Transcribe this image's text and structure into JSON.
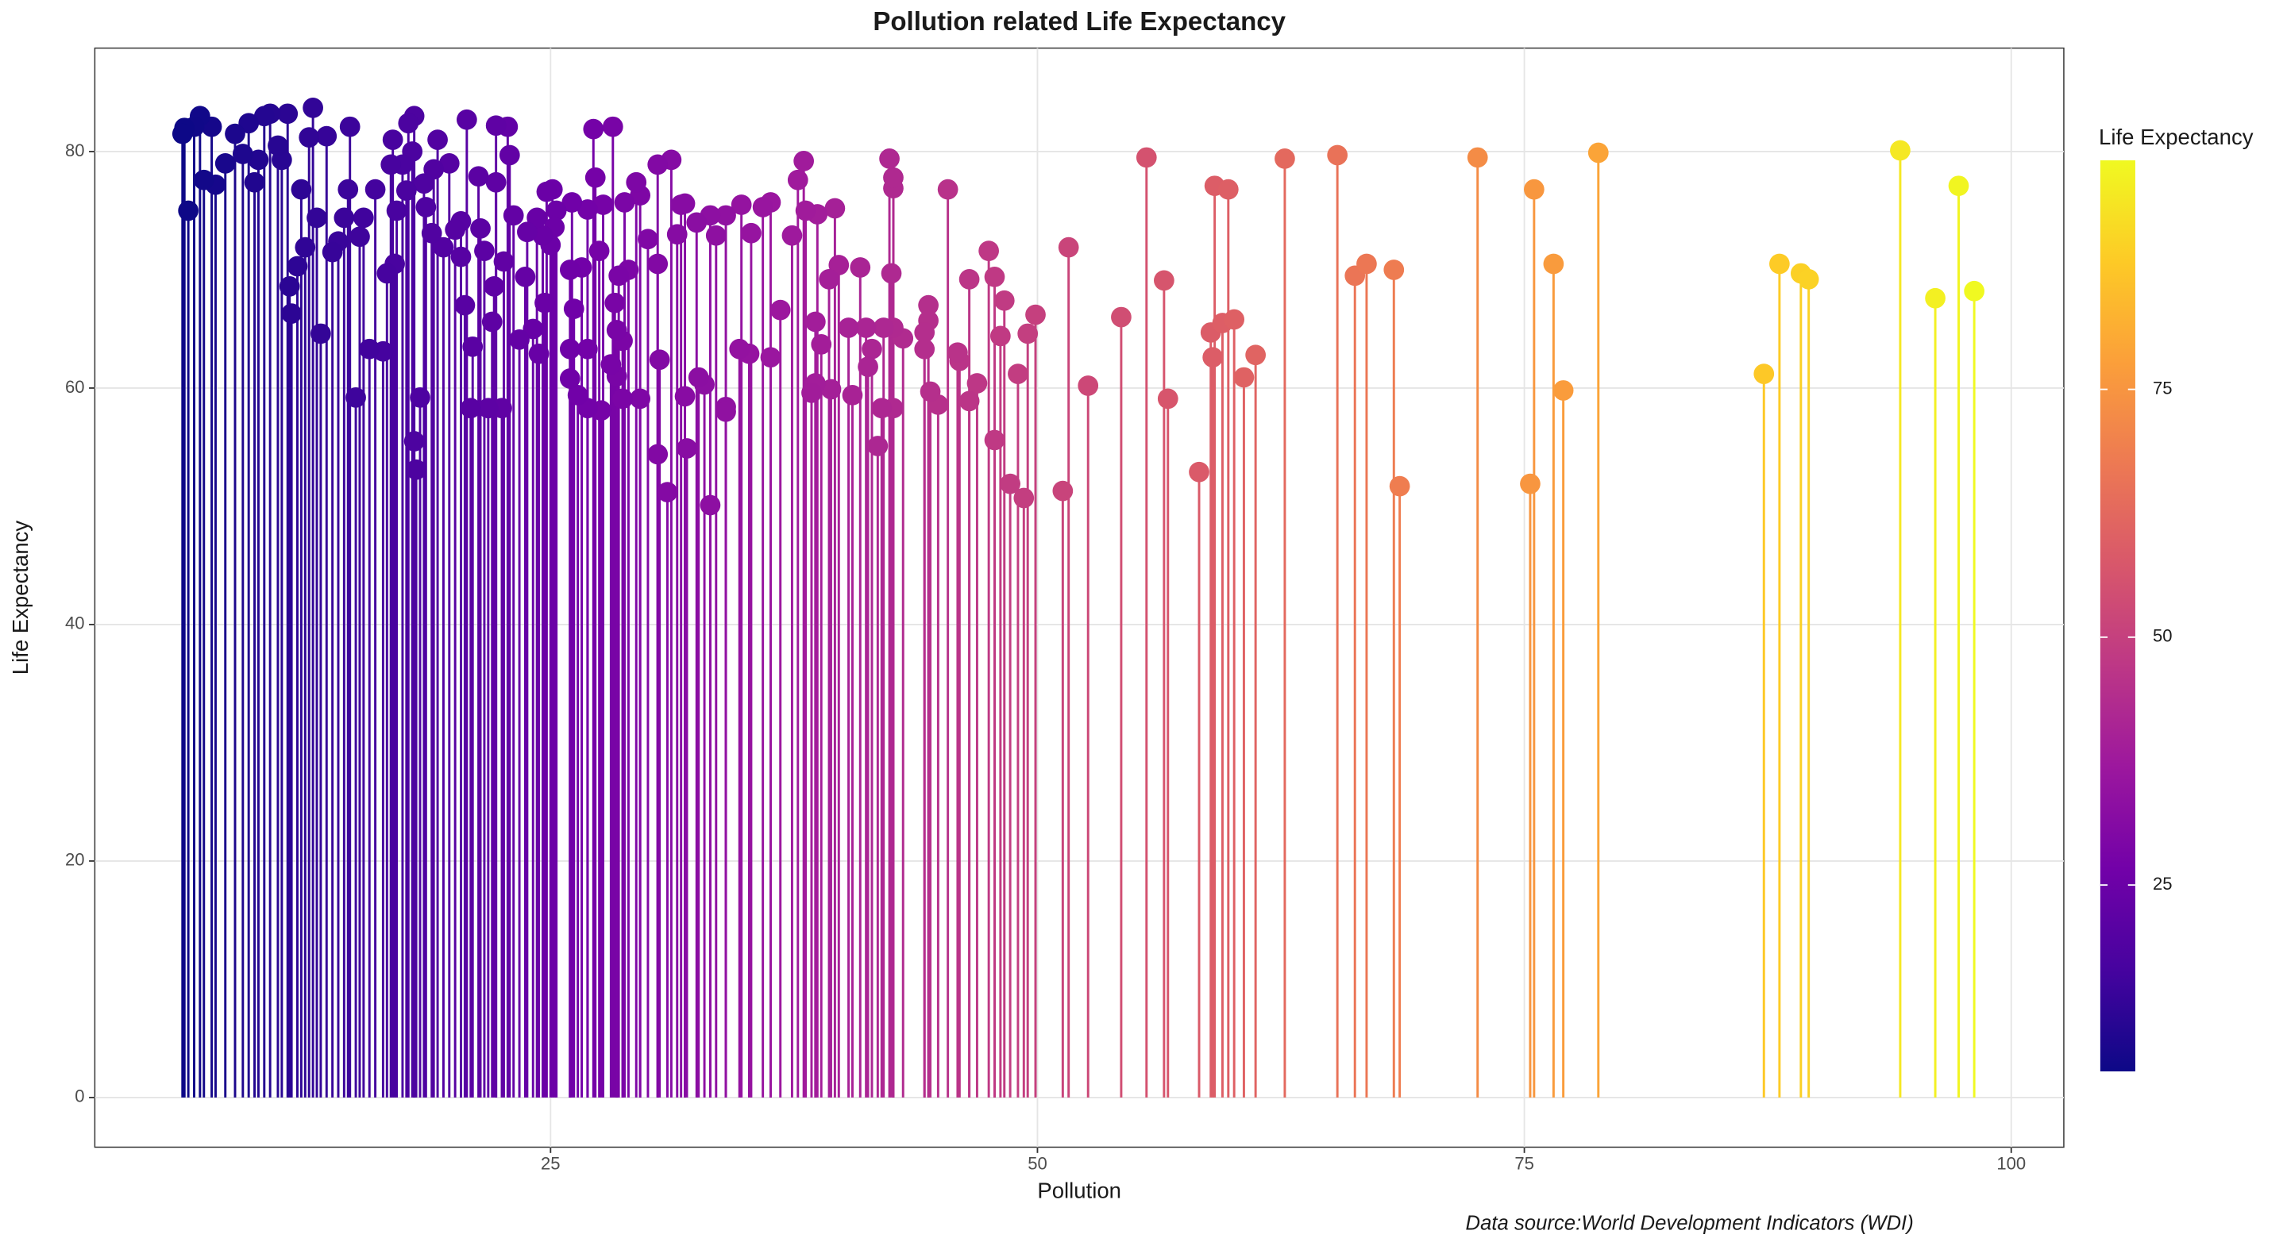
{
  "chart_data": {
    "type": "lollipop",
    "title": "Pollution related Life Expectancy",
    "x_label": "Pollution",
    "y_label": "Life Expectancy",
    "caption": "Data source:World Development Indicators (WDI)",
    "xlim": [
      1.6,
      102.7
    ],
    "ylim": [
      -4.2,
      88.75
    ],
    "xticks": [
      25,
      50,
      75,
      100
    ],
    "yticks": [
      0,
      20,
      40,
      60,
      80
    ],
    "grid": true,
    "legend_position": "right",
    "colorbar": {
      "title": "Life Expectancy",
      "lim": [
        6.2,
        98.1
      ],
      "ticks": [
        25,
        50,
        75
      ],
      "colors": [
        "#0d0887",
        "#46039f",
        "#7201a8",
        "#9c179e",
        "#bd3786",
        "#d8576b",
        "#ed7953",
        "#fb9f3a",
        "#fdca26",
        "#f0f921"
      ]
    },
    "x": [
      94.3,
      97.3,
      96.1,
      98.1,
      87.3,
      88.1,
      89.2,
      89.6,
      78.8,
      72.6,
      75.5,
      76.5,
      77.0,
      75.3,
      65.4,
      62.7,
      66.3,
      66.9,
      68.3,
      68.6,
      55.6,
      59.1,
      59.8,
      56.5,
      56.7,
      58.3,
      58.9,
      59.5,
      60.1,
      59.0,
      60.6,
      61.2,
      54.3,
      52.6,
      51.6,
      51.3,
      49.9,
      49.5,
      49.3,
      49.0,
      48.6,
      48.3,
      48.1,
      47.8,
      47.8,
      47.5,
      46.9,
      46.5,
      46.5,
      46.0,
      45.9,
      45.4,
      44.9,
      44.5,
      44.4,
      44.4,
      44.2,
      44.2,
      43.1,
      42.6,
      42.6,
      42.4,
      42.5,
      42.6,
      42.6,
      42.0,
      41.8,
      42.1,
      41.5,
      41.3,
      41.2,
      40.9,
      40.5,
      40.3,
      39.8,
      39.6,
      39.4,
      39.3,
      38.9,
      38.7,
      38.6,
      38.6,
      38.4,
      38.1,
      38.0,
      37.7,
      37.4,
      36.8,
      36.3,
      36.3,
      35.9,
      35.3,
      35.2,
      34.8,
      34.7,
      34.0,
      34.0,
      34.0,
      33.5,
      33.2,
      32.9,
      32.6,
      32.5,
      33.2,
      32.0,
      31.9,
      31.9,
      31.5,
      31.7,
      31.2,
      31.0,
      30.6,
      30.5,
      30.5,
      30.5,
      30.0,
      29.6,
      29.6,
      29.4,
      29.0,
      28.8,
      28.7,
      28.7,
      28.5,
      28.4,
      28.4,
      28.3,
      28.2,
      28.1,
      27.7,
      27.6,
      27.5,
      27.3,
      27.2,
      26.9,
      26.9,
      26.9,
      26.6,
      26.4,
      26.2,
      26.1,
      26.0,
      26.0,
      26.0,
      25.3,
      25.2,
      25.1,
      25.0,
      24.8,
      24.7,
      24.6,
      24.4,
      24.3,
      24.1,
      23.8,
      23.7,
      23.4,
      23.1,
      22.9,
      22.8,
      22.6,
      22.5,
      22.2,
      22.2,
      22.1,
      22.0,
      21.8,
      21.6,
      21.4,
      21.3,
      21.0,
      20.9,
      20.7,
      20.6,
      20.4,
      20.4,
      20.1,
      19.8,
      19.5,
      19.2,
      19.0,
      18.9,
      18.6,
      18.5,
      18.3,
      18.1,
      18.0,
      18.0,
      17.9,
      17.7,
      17.6,
      17.4,
      17.1,
      17.0,
      16.9,
      16.8,
      16.6,
      16.4,
      16.0,
      15.7,
      15.4,
      15.2,
      15.0,
      14.7,
      14.6,
      14.4,
      14.1,
      13.8,
      13.5,
      13.2,
      13.0,
      12.8,
      12.6,
      12.4,
      12.2,
      12.0,
      11.7,
      11.6,
      11.5,
      11.2,
      11.0,
      10.6,
      10.3,
      10.0,
      9.8,
      9.5,
      9.2,
      8.8,
      8.3,
      7.8,
      7.6,
      7.2,
      7.0,
      6.7,
      6.4,
      6.2,
      6.1
    ],
    "values": [
      80.1,
      77.1,
      67.6,
      68.2,
      61.2,
      70.5,
      69.7,
      69.2,
      79.9,
      79.5,
      76.8,
      70.5,
      59.8,
      51.9,
      79.7,
      79.4,
      69.5,
      70.5,
      70.0,
      51.7,
      79.5,
      77.1,
      76.8,
      69.1,
      59.1,
      52.9,
      64.7,
      65.5,
      65.8,
      62.6,
      60.9,
      62.8,
      66.0,
      60.2,
      71.9,
      51.3,
      66.2,
      64.6,
      50.7,
      61.2,
      51.9,
      67.4,
      64.4,
      69.4,
      55.6,
      71.6,
      60.4,
      69.2,
      58.9,
      62.3,
      63.0,
      76.8,
      58.6,
      59.7,
      67.0,
      65.7,
      63.3,
      64.7,
      64.2,
      76.9,
      77.8,
      79.4,
      69.7,
      65.1,
      58.3,
      58.3,
      55.1,
      65.1,
      63.3,
      61.8,
      65.1,
      70.2,
      59.4,
      65.1,
      70.4,
      75.2,
      59.9,
      69.2,
      63.7,
      74.7,
      65.6,
      60.4,
      59.6,
      75.0,
      79.2,
      77.6,
      72.9,
      66.6,
      75.7,
      62.6,
      75.3,
      73.1,
      62.9,
      75.5,
      63.3,
      74.6,
      58.4,
      58.0,
      72.9,
      74.6,
      60.3,
      60.9,
      74.0,
      50.1,
      54.9,
      75.6,
      59.3,
      73.0,
      75.5,
      79.3,
      51.2,
      62.4,
      78.9,
      54.4,
      70.5,
      72.6,
      59.1,
      76.3,
      77.4,
      70.0,
      75.7,
      59.1,
      64.0,
      69.5,
      64.9,
      61.0,
      67.2,
      82.1,
      62.0,
      75.5,
      58.1,
      71.6,
      77.8,
      81.9,
      75.1,
      58.3,
      63.3,
      70.2,
      59.4,
      66.7,
      75.7,
      60.8,
      70.0,
      63.3,
      75.0,
      73.6,
      76.8,
      72.1,
      76.6,
      67.2,
      72.9,
      62.9,
      74.4,
      65.0,
      73.2,
      69.4,
      64.1,
      74.6,
      79.7,
      82.1,
      70.7,
      58.3,
      77.4,
      82.2,
      68.6,
      65.6,
      58.3,
      71.6,
      73.5,
      77.9,
      63.5,
      58.3,
      82.7,
      67.0,
      71.1,
      74.1,
      73.4,
      79.0,
      71.9,
      81.0,
      78.5,
      73.1,
      75.3,
      77.3,
      59.2,
      53.1,
      55.5,
      83.0,
      80.0,
      82.4,
      76.7,
      78.9,
      75.0,
      70.5,
      81.0,
      78.9,
      69.7,
      63.1,
      76.8,
      63.3,
      74.4,
      72.8,
      59.2,
      82.1,
      76.8,
      74.4,
      72.4,
      71.5,
      81.3,
      64.6,
      74.4,
      83.7,
      81.2,
      71.9,
      76.8,
      70.3,
      66.3,
      68.6,
      83.2,
      79.3,
      80.5,
      83.2,
      83.0,
      79.3,
      77.4,
      82.4,
      79.8,
      81.5,
      79.0,
      77.2,
      82.1,
      77.6,
      83.0,
      82.1,
      75.0,
      82.0,
      81.5
    ]
  }
}
